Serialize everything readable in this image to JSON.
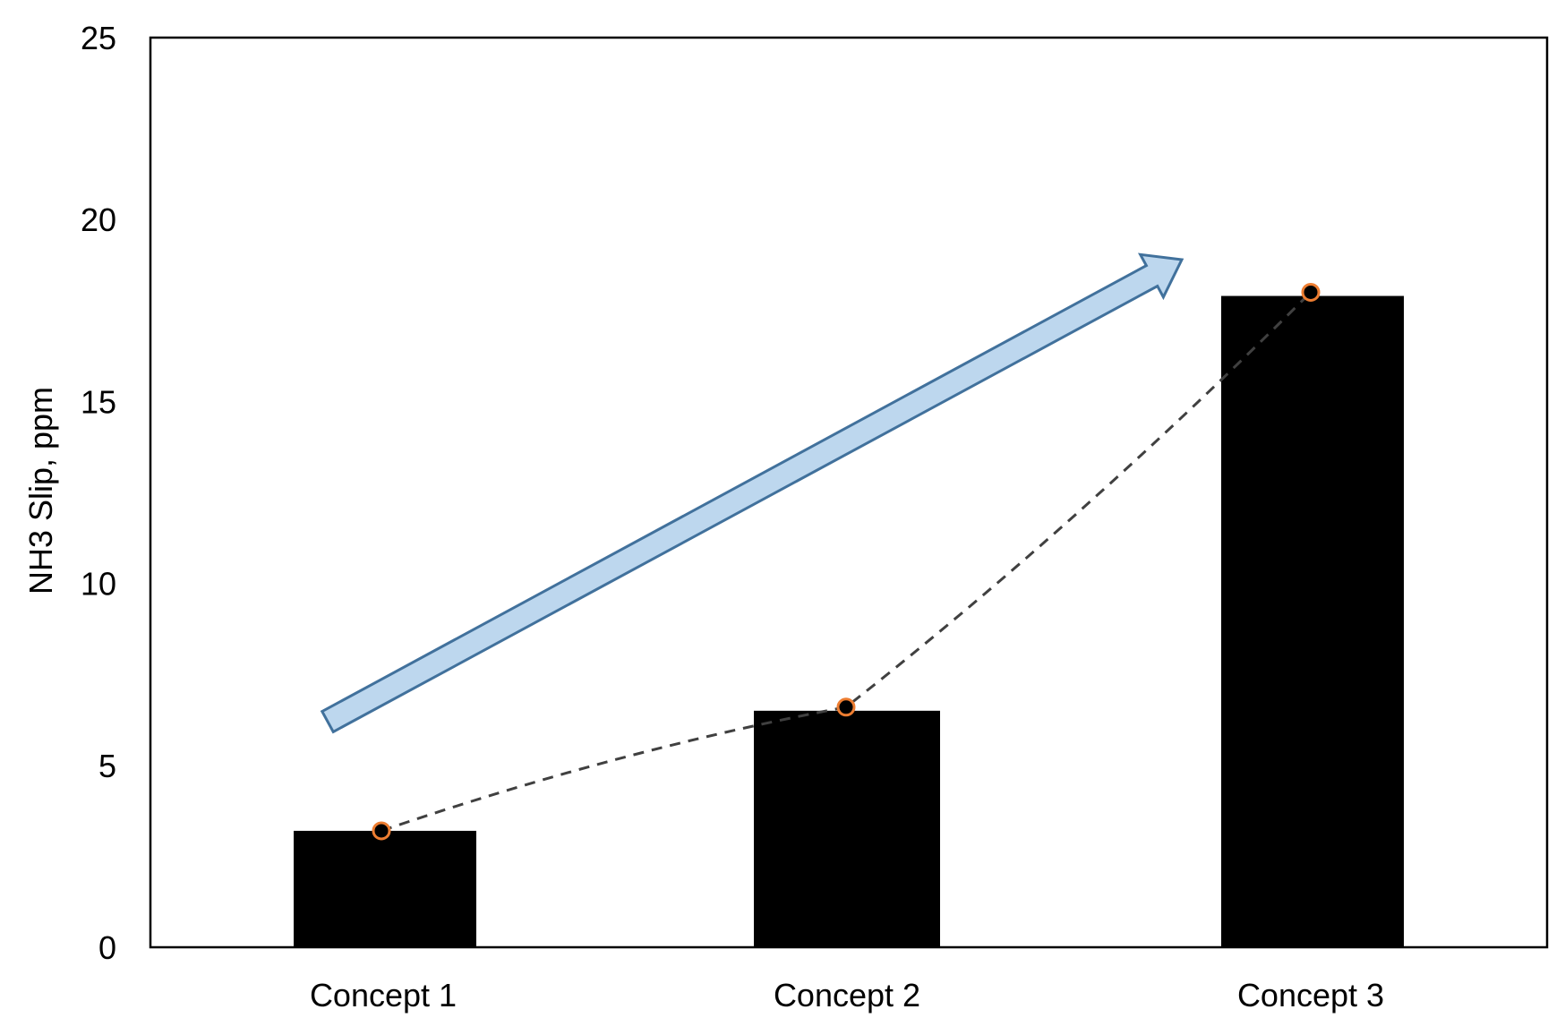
{
  "chart_data": {
    "type": "bar",
    "title": "",
    "xlabel": "",
    "ylabel": "NH3 Slip, ppm",
    "categories": [
      "Concept 1",
      "Concept 2",
      "Concept 3"
    ],
    "values": [
      3.2,
      6.5,
      17.9
    ],
    "markers": [
      3.2,
      6.6,
      18.0
    ],
    "ylim": [
      0,
      25
    ],
    "yticks": [
      0,
      5,
      10,
      15,
      20,
      25
    ],
    "grid": false,
    "legend": "none",
    "annotations": [
      "dashed trend line through markers",
      "upward arrow indicating increasing trend"
    ],
    "colors": {
      "bar": "#000000",
      "marker_ring": "#ed7d31",
      "trend_line": "#404040",
      "arrow_fill": "#bdd7ee",
      "arrow_stroke": "#41719c"
    }
  }
}
